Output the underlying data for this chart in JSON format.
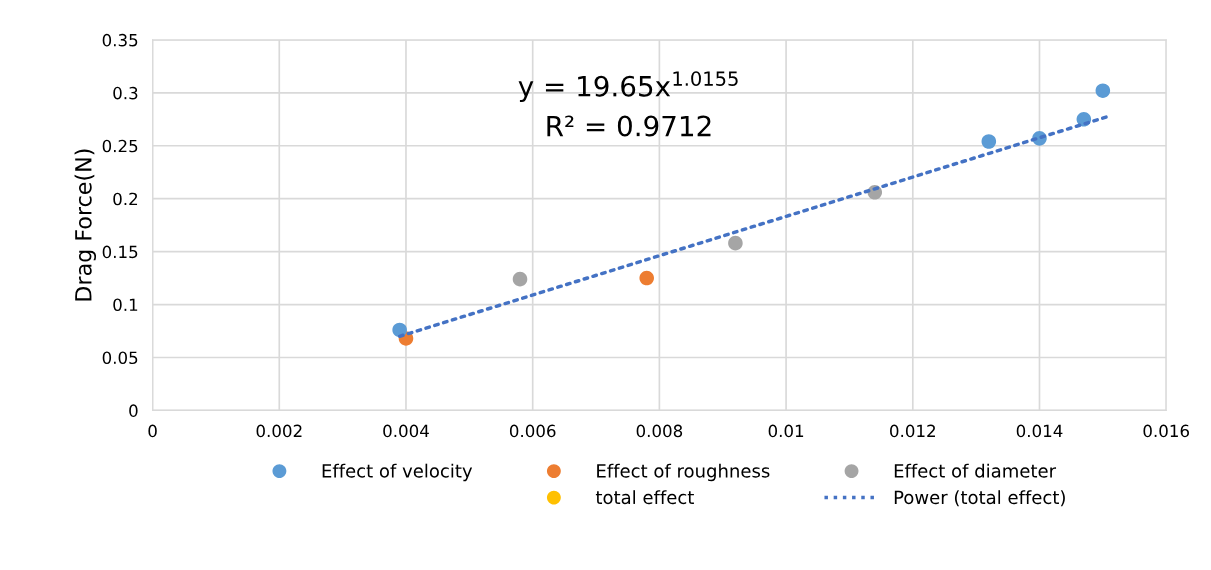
{
  "chart_data": {
    "type": "scatter",
    "ylabel": "Drag Force(N)",
    "xlim": [
      0,
      0.016
    ],
    "xticks": [
      0,
      0.002,
      0.004,
      0.006,
      0.008,
      0.01,
      0.012,
      0.014,
      0.016
    ],
    "ylim": [
      0,
      0.35
    ],
    "yticks": [
      0,
      0.05,
      0.1,
      0.15,
      0.2,
      0.25,
      0.3,
      0.35
    ],
    "grid": true,
    "legend": "bottom",
    "marker": "circle",
    "annotations": [
      "y = 19.65x$^{1.0155}$\nR² = 0.9712"
    ],
    "series": [
      {
        "name": "Effect of velocity",
        "color": "#5b9bd5",
        "x": [
          0.0039,
          0.0132,
          0.014,
          0.0147,
          0.015
        ],
        "values": [
          0.076,
          0.254,
          0.257,
          0.275,
          0.302
        ]
      },
      {
        "name": "Effect of roughness",
        "color": "#ed7d31",
        "x": [
          0.004,
          0.0078
        ],
        "values": [
          0.068,
          0.125
        ]
      },
      {
        "name": "Effect of diameter",
        "color": "#a5a5a5",
        "x": [
          0.0058,
          0.0092,
          0.0114
        ],
        "values": [
          0.124,
          0.158,
          0.206
        ]
      },
      {
        "name": "total effect",
        "color": "#ffc000",
        "values": [
          null,
          null,
          null,
          null,
          null,
          null,
          null,
          null,
          null,
          null
        ]
      },
      {
        "name": "Power (total effect)",
        "type": "line",
        "line_style": "dotted",
        "marker": "none",
        "color": "#4472c4",
        "x": [
          0.0039,
          0.0095,
          0.0151
        ],
        "values": [
          0.07,
          0.174,
          0.278
        ]
      }
    ]
  }
}
